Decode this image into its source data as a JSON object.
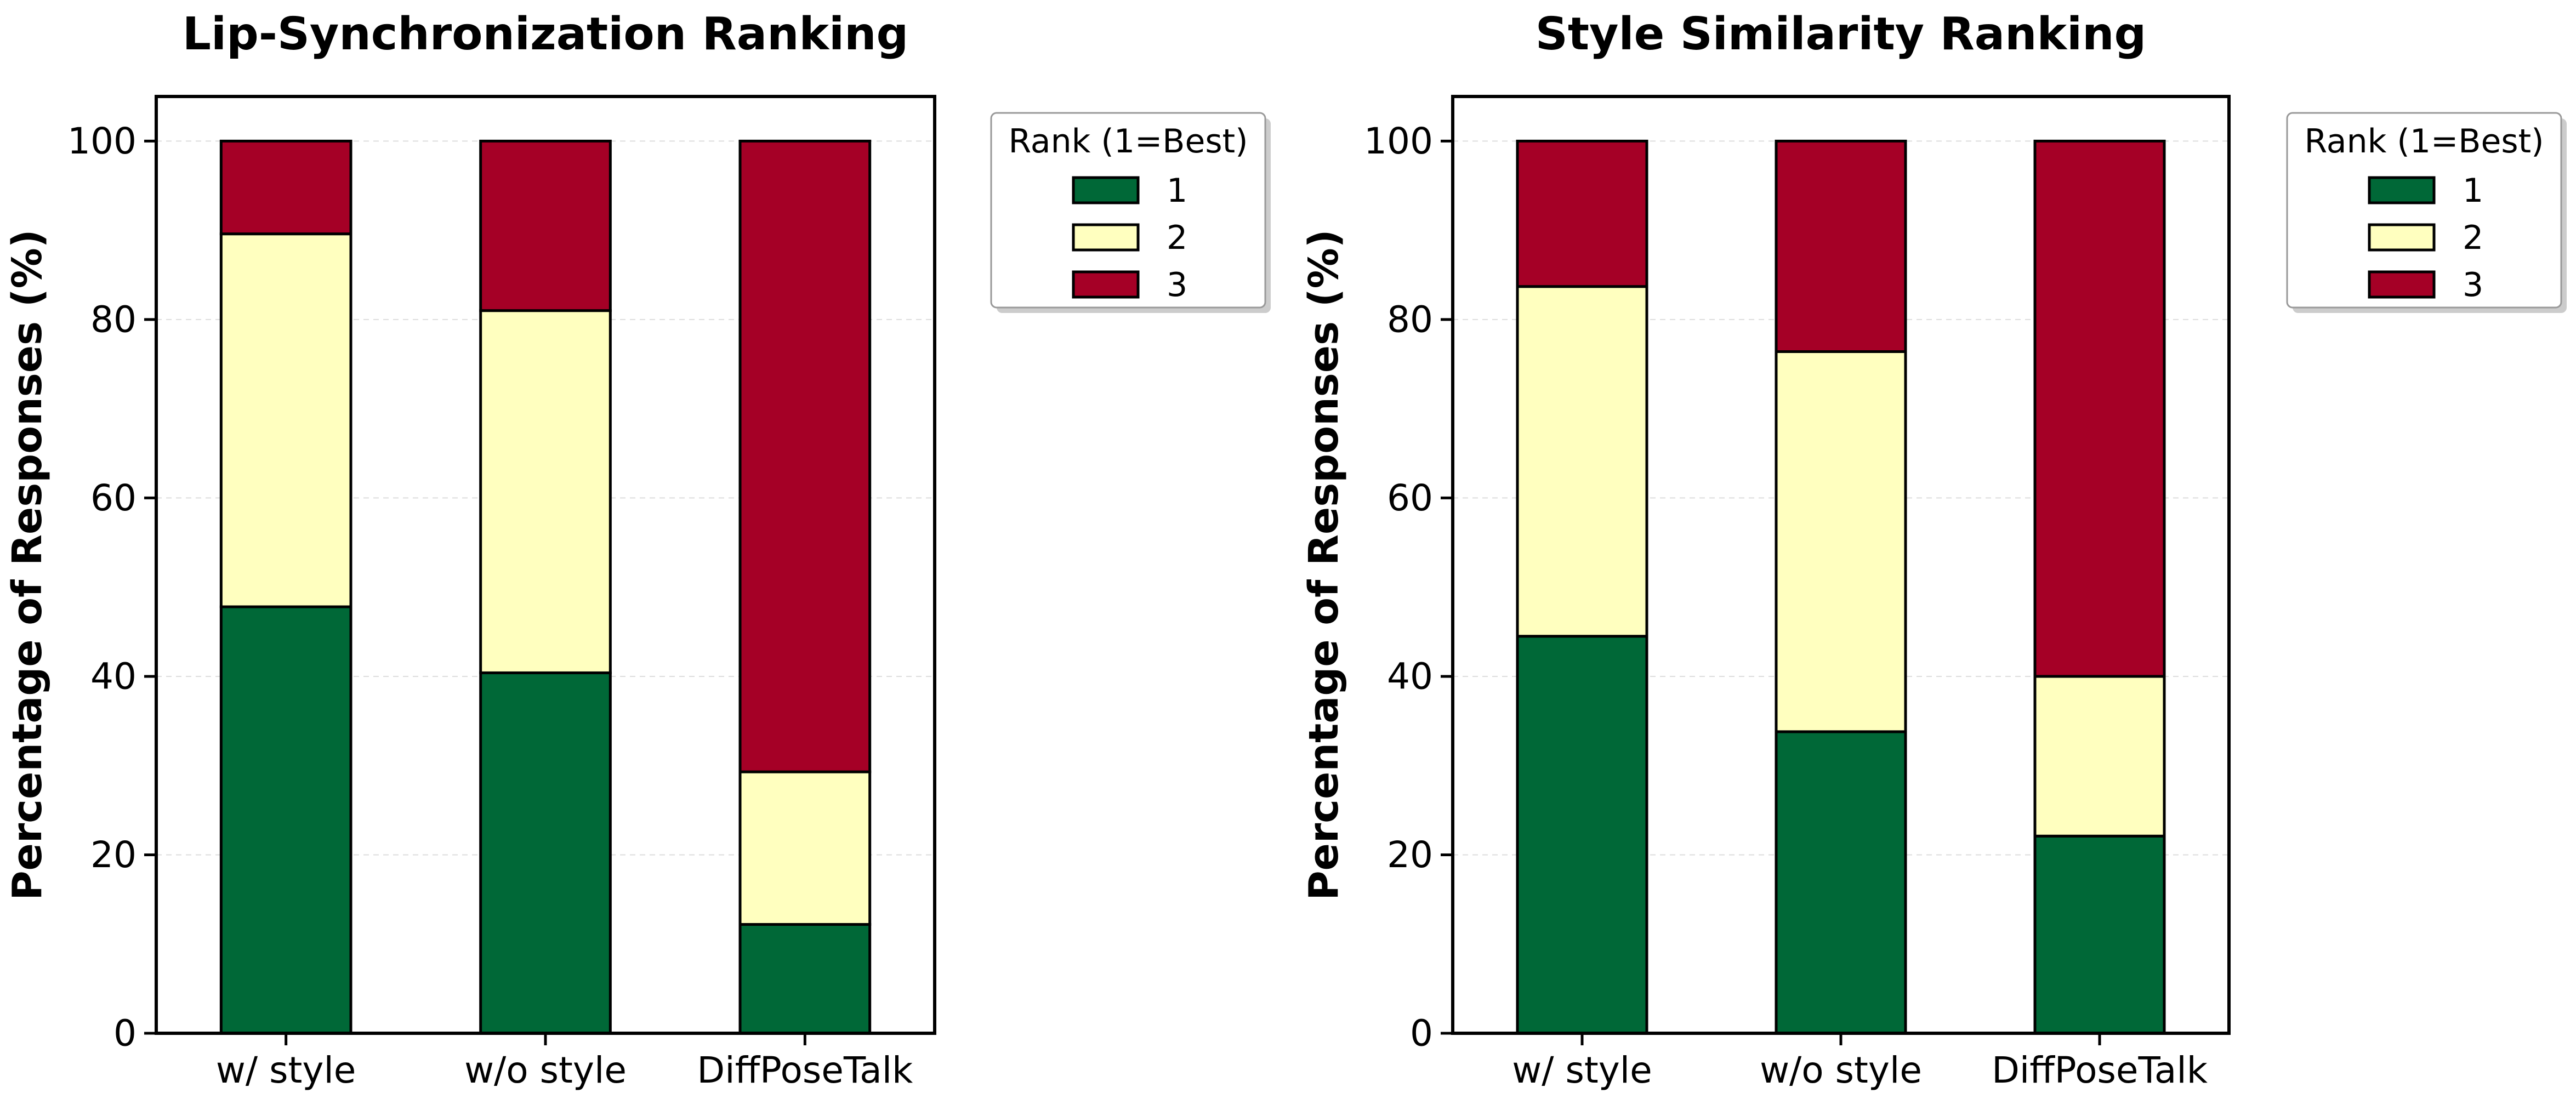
{
  "chart_data": [
    {
      "type": "bar",
      "stacked": true,
      "title": "Lip-Synchronization Ranking",
      "xlabel": "",
      "ylabel": "Percentage of Responses (%)",
      "ylim": [
        0,
        105
      ],
      "yticks": [
        0,
        20,
        40,
        60,
        80,
        100
      ],
      "grid": "horizontal dashed",
      "categories": [
        "w/ style",
        "w/o style",
        "DiffPoseTalk"
      ],
      "series": [
        {
          "name": "1",
          "values": [
            47.8,
            40.4,
            12.2
          ]
        },
        {
          "name": "2",
          "values": [
            41.8,
            40.6,
            17.1
          ]
        },
        {
          "name": "3",
          "values": [
            10.4,
            19.0,
            70.7
          ]
        }
      ],
      "legend": {
        "title": "Rank (1=Best)",
        "placement": "outside upper-right"
      }
    },
    {
      "type": "bar",
      "stacked": true,
      "title": "Style Similarity Ranking",
      "xlabel": "",
      "ylabel": "Percentage of Responses (%)",
      "ylim": [
        0,
        105
      ],
      "yticks": [
        0,
        20,
        40,
        60,
        80,
        100
      ],
      "grid": "horizontal dashed",
      "categories": [
        "w/ style",
        "w/o style",
        "DiffPoseTalk"
      ],
      "series": [
        {
          "name": "1",
          "values": [
            44.5,
            33.8,
            22.1
          ]
        },
        {
          "name": "2",
          "values": [
            39.2,
            42.6,
            17.9
          ]
        },
        {
          "name": "3",
          "values": [
            16.3,
            23.6,
            60.0
          ]
        }
      ],
      "legend": {
        "title": "Rank (1=Best)",
        "placement": "outside upper-right"
      }
    }
  ],
  "colors": {
    "rank_1": "#006837",
    "rank_2": "#ffffbf",
    "rank_3": "#a50026",
    "edge": "#000000",
    "grid": "#dddddd"
  }
}
